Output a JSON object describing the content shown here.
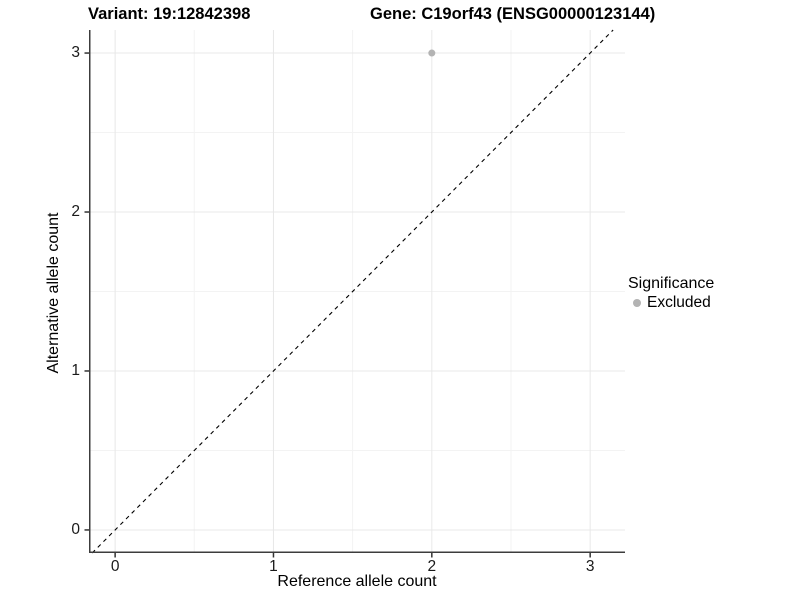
{
  "titles": {
    "variant": "Variant: 19:12842398",
    "gene": "Gene: C19orf43 (ENSG00000123144)"
  },
  "axes": {
    "x_label": "Reference allele count",
    "y_label": "Alternative allele count"
  },
  "legend": {
    "title": "Significance",
    "position": "right",
    "items": [
      {
        "label": "Excluded",
        "color": "#b3b3b3"
      }
    ]
  },
  "chart_data": {
    "type": "scatter",
    "title": "Variant: 19:12842398   Gene: C19orf43 (ENSG00000123144)",
    "xlabel": "Reference allele count",
    "ylabel": "Alternative allele count",
    "xlim": [
      -0.165,
      3.22
    ],
    "ylim": [
      -0.145,
      3.145
    ],
    "x_ticks": [
      0,
      1,
      2,
      3
    ],
    "y_ticks": [
      0,
      1,
      2,
      3
    ],
    "x_minor_ticks": [
      0.5,
      1.5,
      2.5
    ],
    "y_minor_ticks": [
      0.5,
      1.5,
      2.5
    ],
    "grid": true,
    "legend_position": "right",
    "series": [
      {
        "name": "Excluded",
        "color": "#b3b3b3",
        "points": [
          {
            "x": 2,
            "y": 3
          }
        ]
      }
    ],
    "reference_line": {
      "equation": "y = x",
      "style": "dashed",
      "color": "#000000"
    },
    "style": {
      "grid_major_color": "#e8e8e8",
      "grid_minor_color": "#f3f3f3",
      "axis_line_color": "#3c3c3c",
      "tick_color": "#333333",
      "point_radius": 3.5,
      "legend_dot_radius": 4
    }
  }
}
